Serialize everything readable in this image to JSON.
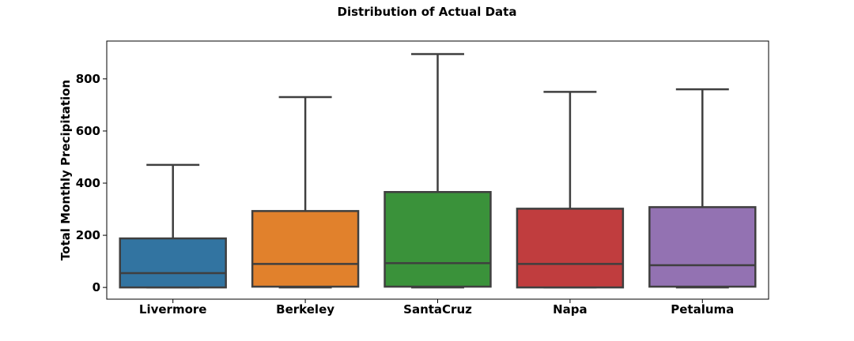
{
  "chart_data": {
    "type": "box",
    "title": "Distribution of Actual Data",
    "xlabel": "",
    "ylabel": "Total Monthly Precipitation",
    "ylim": [
      -45,
      945
    ],
    "yticks": [
      0,
      200,
      400,
      600,
      800
    ],
    "grid": false,
    "legend": "none",
    "categories": [
      "Livermore",
      "Berkeley",
      "SantaCruz",
      "Napa",
      "Petaluma"
    ],
    "boxes": [
      {
        "name": "Livermore",
        "min": 0,
        "q1": 0,
        "median": 55,
        "q3": 188,
        "max": 470,
        "color": "#3274a1"
      },
      {
        "name": "Berkeley",
        "min": 0,
        "q1": 3,
        "median": 90,
        "q3": 293,
        "max": 730,
        "color": "#e1812c"
      },
      {
        "name": "SantaCruz",
        "min": 0,
        "q1": 3,
        "median": 93,
        "q3": 366,
        "max": 895,
        "color": "#3a923a"
      },
      {
        "name": "Napa",
        "min": 0,
        "q1": 0,
        "median": 90,
        "q3": 302,
        "max": 750,
        "color": "#c03d3e"
      },
      {
        "name": "Petaluma",
        "min": 0,
        "q1": 3,
        "median": 85,
        "q3": 308,
        "max": 760,
        "color": "#9372b2"
      }
    ]
  }
}
